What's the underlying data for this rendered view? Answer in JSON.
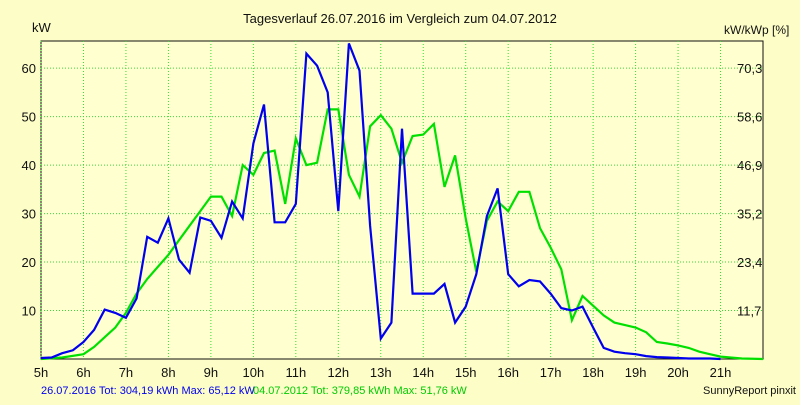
{
  "chart_data": {
    "type": "line",
    "title": "Tagesverlauf 26.07.2016 im Vergleich zum 04.07.2012",
    "ylabel_left": "kW",
    "ylabel_right": "kW/kWp [%]",
    "xlim": [
      5.0,
      22.0
    ],
    "ylim": [
      0,
      65.6
    ],
    "grid": true,
    "x_ticks": [
      5,
      6,
      7,
      8,
      9,
      10,
      11,
      12,
      13,
      14,
      15,
      16,
      17,
      18,
      19,
      20,
      21
    ],
    "x_tick_labels": [
      "5h",
      "6h",
      "7h",
      "8h",
      "9h",
      "10h",
      "11h",
      "12h",
      "13h",
      "14h",
      "15h",
      "16h",
      "17h",
      "18h",
      "19h",
      "20h",
      "21h"
    ],
    "y_left_ticks": [
      10,
      20,
      30,
      40,
      50,
      60
    ],
    "y_left_tick_labels": [
      "10",
      "20",
      "30",
      "40",
      "50",
      "60"
    ],
    "y_right_ticks": [
      11.71,
      23.42,
      35.13,
      46.84,
      58.55,
      70.26
    ],
    "y_right_tick_labels": [
      "11,7",
      "23,4",
      "35,2",
      "46,9",
      "58,6",
      "70,3"
    ],
    "series": [
      {
        "color": "#0000ee",
        "x": [
          5.0,
          5.25,
          5.5,
          5.75,
          6.0,
          6.25,
          6.5,
          6.75,
          7.0,
          7.25,
          7.5,
          7.75,
          8.0,
          8.25,
          8.5,
          8.75,
          9.0,
          9.25,
          9.5,
          9.75,
          10.0,
          10.25,
          10.5,
          10.75,
          11.0,
          11.25,
          11.5,
          11.75,
          12.0,
          12.25,
          12.5,
          12.75,
          13.0,
          13.25,
          13.5,
          13.75,
          14.0,
          14.25,
          14.5,
          14.75,
          15.0,
          15.25,
          15.5,
          15.75,
          16.0,
          16.25,
          16.5,
          16.75,
          17.0,
          17.25,
          17.5,
          17.75,
          18.0,
          18.25,
          18.5,
          18.75,
          19.0,
          19.25,
          19.5,
          19.75,
          20.0,
          20.25,
          20.5,
          20.75,
          21.0
        ],
        "values": [
          0.2,
          0.3,
          1.2,
          1.8,
          3.5,
          6.0,
          10.2,
          9.5,
          8.5,
          12.5,
          25.2,
          24.0,
          29.0,
          20.5,
          17.8,
          29.2,
          28.5,
          25.0,
          32.5,
          29.0,
          44.5,
          52.5,
          28.2,
          28.2,
          32.0,
          63.0,
          60.5,
          55.0,
          30.5,
          65.1,
          59.5,
          27.5,
          4.2,
          7.5,
          47.5,
          13.5,
          13.5,
          13.5,
          15.5,
          7.5,
          10.8,
          17.5,
          29.5,
          35.2,
          17.5,
          15.0,
          16.3,
          16.0,
          13.5,
          10.5,
          10.0,
          10.8,
          6.5,
          2.3,
          1.5,
          1.2,
          1.0,
          0.6,
          0.4,
          0.3,
          0.2,
          0.1,
          0.1,
          0.1,
          0.0
        ]
      },
      {
        "color": "#00e000",
        "x": [
          5.0,
          5.5,
          6.0,
          6.25,
          6.5,
          6.75,
          7.0,
          7.25,
          7.5,
          7.75,
          8.0,
          8.25,
          8.5,
          8.75,
          9.0,
          9.25,
          9.5,
          9.75,
          10.0,
          10.25,
          10.5,
          10.75,
          11.0,
          11.25,
          11.5,
          11.75,
          12.0,
          12.25,
          12.5,
          12.75,
          13.0,
          13.25,
          13.5,
          13.75,
          14.0,
          14.25,
          14.5,
          14.75,
          15.0,
          15.25,
          15.5,
          15.75,
          16.0,
          16.25,
          16.5,
          16.75,
          17.0,
          17.25,
          17.5,
          17.75,
          18.0,
          18.25,
          18.5,
          18.75,
          19.0,
          19.25,
          19.5,
          19.75,
          20.0,
          20.25,
          20.5,
          20.75,
          21.0,
          21.5,
          22.0
        ],
        "values": [
          0.0,
          0.3,
          1.0,
          2.5,
          4.5,
          6.5,
          9.5,
          13.5,
          16.5,
          19.0,
          21.5,
          24.5,
          27.5,
          30.5,
          33.5,
          33.5,
          29.5,
          40.0,
          38.0,
          42.5,
          43.0,
          32.0,
          45.5,
          40.0,
          40.5,
          51.5,
          51.5,
          38.0,
          33.5,
          48.0,
          50.3,
          47.5,
          40.5,
          46.0,
          46.3,
          48.5,
          35.5,
          42.0,
          29.0,
          18.0,
          28.5,
          32.5,
          30.5,
          34.5,
          34.5,
          27.0,
          23.0,
          18.5,
          8.0,
          13.0,
          11.0,
          9.0,
          7.5,
          7.0,
          6.5,
          5.5,
          3.5,
          3.2,
          2.8,
          2.3,
          1.5,
          1.0,
          0.5,
          0.1,
          0.0
        ]
      }
    ],
    "footer": {
      "blue_text": "26.07.2016 Tot: 304,19 kWh Max: 65,12 kW",
      "green_text": "04.07.2012 Tot: 379,85 kWh Max: 51,76 kW",
      "credit": "SunnyReport pinxit"
    }
  }
}
